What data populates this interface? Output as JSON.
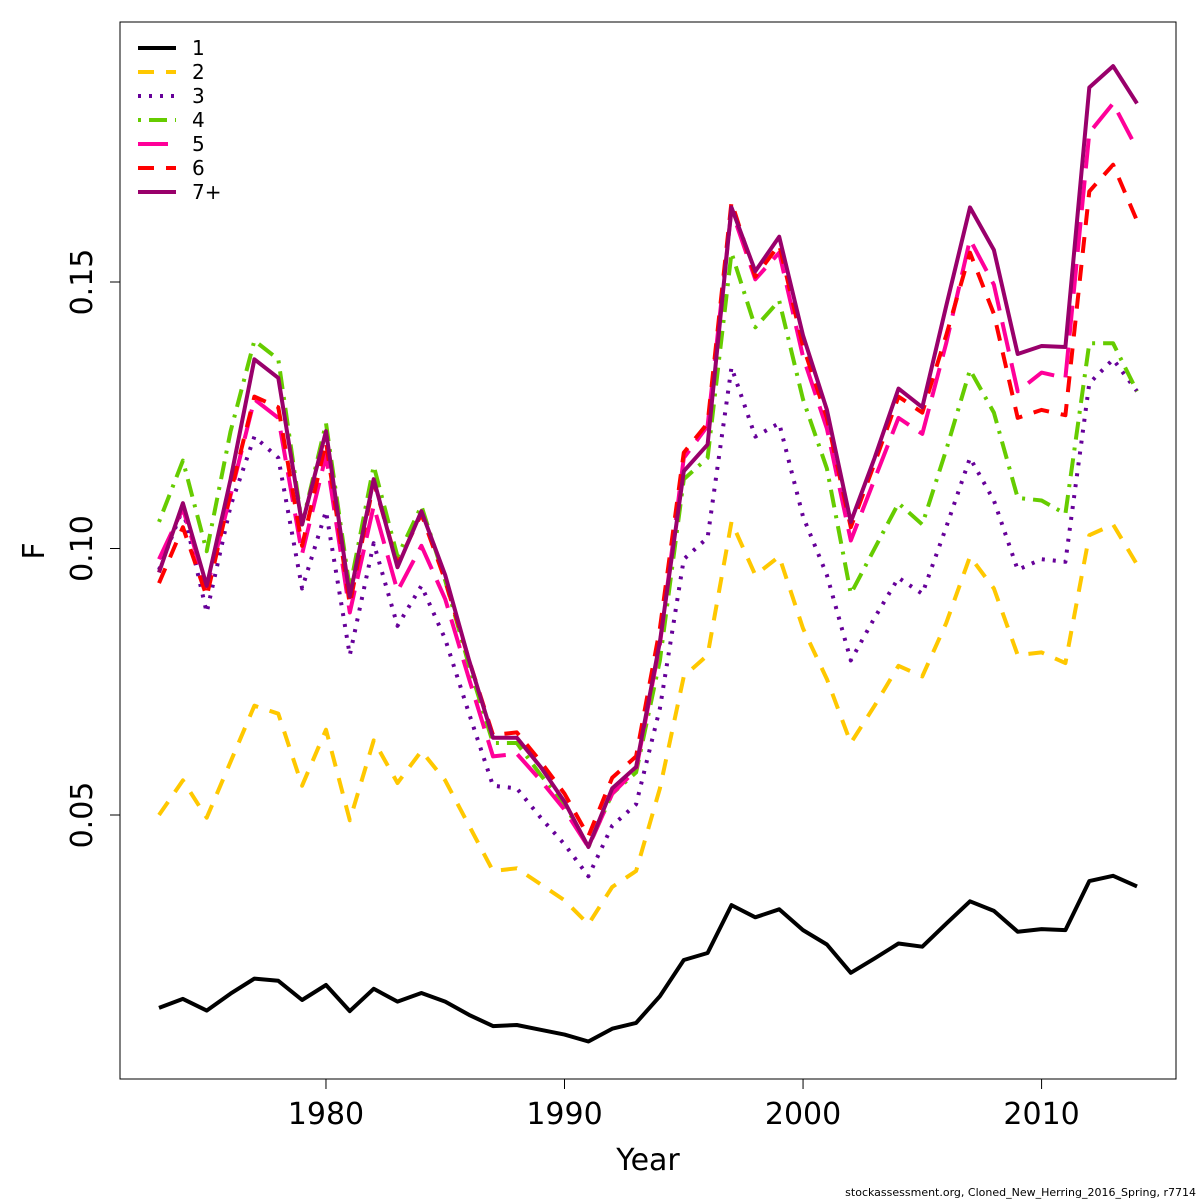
{
  "chart_data": {
    "type": "line",
    "xlabel": "Year",
    "ylabel": "F",
    "xlim": [
      1972.3,
      1976.2
    ],
    "ylim": [
      0.0065,
      0.204
    ],
    "x_ticks": [
      1980,
      1990,
      2000,
      2010
    ],
    "y_ticks": [
      0.05,
      0.1,
      0.15
    ],
    "y_tick_labels": [
      "0.05",
      "0.10",
      "0.15"
    ],
    "legend_position": "top-left",
    "grid": false,
    "caption": "stockassessment.org, Cloned_New_Herring_2016_Spring, r7714",
    "x": [
      1973,
      1974,
      1975,
      1976,
      1977,
      1978,
      1979,
      1980,
      1981,
      1982,
      1983,
      1984,
      1985,
      1986,
      1987,
      1988,
      1989,
      1990,
      1991,
      1992,
      1993,
      1994,
      1995,
      1996,
      1997,
      1998,
      1999,
      2000,
      2001,
      2002,
      2003,
      2004,
      2005,
      2006,
      2007,
      2008,
      2009,
      2010,
      2011,
      2012,
      2013,
      2014
    ],
    "series": [
      {
        "name": "1",
        "color": "#000000",
        "dash": "solid",
        "values": [
          0.0138,
          0.0155,
          0.0133,
          0.0165,
          0.0193,
          0.0189,
          0.0153,
          0.0181,
          0.0132,
          0.0174,
          0.015,
          0.0166,
          0.015,
          0.0125,
          0.0104,
          0.0106,
          0.0097,
          0.0088,
          0.0075,
          0.0099,
          0.011,
          0.016,
          0.0228,
          0.0241,
          0.0331,
          0.0308,
          0.0323,
          0.0284,
          0.0257,
          0.0204,
          0.0231,
          0.0259,
          0.0253,
          0.0296,
          0.0338,
          0.032,
          0.0281,
          0.0286,
          0.0284,
          0.0376,
          0.0386,
          0.0366
        ]
      },
      {
        "name": "2",
        "color": "#FFC800",
        "dash": "dashed",
        "values": [
          0.05,
          0.0565,
          0.0495,
          0.06,
          0.0705,
          0.069,
          0.0555,
          0.066,
          0.049,
          0.064,
          0.056,
          0.062,
          0.0565,
          0.048,
          0.0395,
          0.04,
          0.037,
          0.034,
          0.0295,
          0.0365,
          0.0395,
          0.055,
          0.076,
          0.08,
          0.105,
          0.095,
          0.0985,
          0.085,
          0.0755,
          0.0635,
          0.0705,
          0.078,
          0.076,
          0.086,
          0.0985,
          0.0925,
          0.08,
          0.0805,
          0.0785,
          0.1025,
          0.1045,
          0.097
        ]
      },
      {
        "name": "3",
        "color": "#660099",
        "dash": "dotted",
        "values": [
          0.096,
          0.1075,
          0.088,
          0.108,
          0.121,
          0.117,
          0.0925,
          0.107,
          0.08,
          0.101,
          0.0855,
          0.093,
          0.083,
          0.069,
          0.0555,
          0.055,
          0.0495,
          0.0445,
          0.0385,
          0.048,
          0.052,
          0.07,
          0.098,
          0.102,
          0.134,
          0.121,
          0.1235,
          0.106,
          0.095,
          0.079,
          0.087,
          0.0945,
          0.0915,
          0.104,
          0.117,
          0.109,
          0.096,
          0.098,
          0.0975,
          0.131,
          0.1355,
          0.1295
        ]
      },
      {
        "name": "4",
        "color": "#66CC00",
        "dash": "dotdash",
        "values": [
          0.105,
          0.1165,
          0.0995,
          0.122,
          0.139,
          0.1355,
          0.1045,
          0.1235,
          0.0925,
          0.1155,
          0.0985,
          0.108,
          0.094,
          0.078,
          0.0635,
          0.0635,
          0.0575,
          0.052,
          0.044,
          0.054,
          0.058,
          0.079,
          0.113,
          0.117,
          0.1555,
          0.1415,
          0.1465,
          0.128,
          0.115,
          0.0915,
          0.1,
          0.1085,
          0.1045,
          0.1185,
          0.1335,
          0.1255,
          0.1095,
          0.109,
          0.1065,
          0.1385,
          0.1385,
          0.1295
        ]
      },
      {
        "name": "5",
        "color": "#FF0099",
        "dash": "longdash",
        "values": [
          0.098,
          0.1075,
          0.0925,
          0.11,
          0.128,
          0.1245,
          0.099,
          0.1175,
          0.088,
          0.108,
          0.092,
          0.1005,
          0.0905,
          0.0755,
          0.061,
          0.0615,
          0.0565,
          0.051,
          0.044,
          0.054,
          0.0585,
          0.082,
          0.117,
          0.123,
          0.1635,
          0.1505,
          0.1555,
          0.136,
          0.1225,
          0.1015,
          0.113,
          0.1245,
          0.1215,
          0.1385,
          0.158,
          0.1495,
          0.1295,
          0.133,
          0.132,
          0.178,
          0.1835,
          0.175
        ]
      },
      {
        "name": "6",
        "color": "#FF0000",
        "dash": "dashed",
        "values": [
          0.0935,
          0.104,
          0.091,
          0.1105,
          0.1285,
          0.1265,
          0.1005,
          0.12,
          0.0895,
          0.1125,
          0.097,
          0.1065,
          0.094,
          0.079,
          0.065,
          0.0655,
          0.06,
          0.054,
          0.046,
          0.057,
          0.061,
          0.085,
          0.118,
          0.1235,
          0.165,
          0.151,
          0.157,
          0.138,
          0.1245,
          0.104,
          0.116,
          0.1285,
          0.1255,
          0.14,
          0.1555,
          0.144,
          0.1245,
          0.126,
          0.125,
          0.167,
          0.172,
          0.1615
        ]
      },
      {
        "name": "7+",
        "color": "#99006B",
        "dash": "solid",
        "values": [
          0.0955,
          0.1085,
          0.093,
          0.113,
          0.1355,
          0.132,
          0.1045,
          0.122,
          0.091,
          0.113,
          0.0965,
          0.107,
          0.095,
          0.079,
          0.0645,
          0.0645,
          0.059,
          0.0525,
          0.044,
          0.055,
          0.059,
          0.0825,
          0.1145,
          0.1195,
          0.164,
          0.152,
          0.1585,
          0.14,
          0.126,
          0.105,
          0.117,
          0.13,
          0.1265,
          0.1455,
          0.164,
          0.156,
          0.1365,
          0.138,
          0.1378,
          0.1865,
          0.1905,
          0.1835
        ]
      }
    ]
  }
}
